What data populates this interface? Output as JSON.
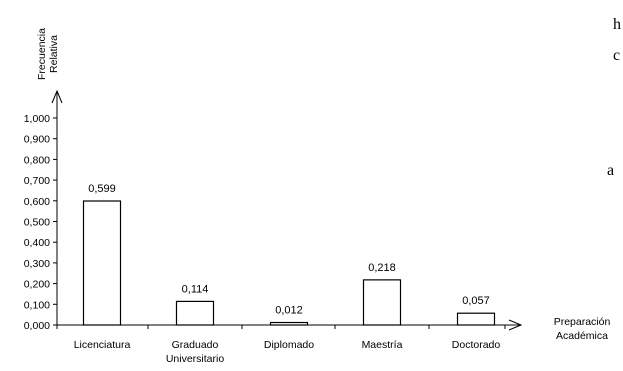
{
  "chart_data": {
    "type": "bar",
    "title": "",
    "ylabel": [
      "Frecuencia",
      "Relativa"
    ],
    "xlabel": [
      "Preparación",
      "Académica"
    ],
    "ylim": [
      0,
      1.0
    ],
    "yticks": [
      "0,000",
      "0,100",
      "0,200",
      "0,300",
      "0,400",
      "0,500",
      "0,600",
      "0,700",
      "0,800",
      "0,900",
      "1,000"
    ],
    "categories": [
      [
        "Licenciatura"
      ],
      [
        "Graduado",
        "Universitario"
      ],
      [
        "Diplomado"
      ],
      [
        "Maestría"
      ],
      [
        "Doctorado"
      ]
    ],
    "values": [
      0.599,
      0.114,
      0.012,
      0.218,
      0.057
    ],
    "value_labels": [
      "0,599",
      "0,114",
      "0,012",
      "0,218",
      "0,057"
    ],
    "grid": false,
    "legend": "none",
    "bar_fill": "#ffffff",
    "bar_stroke": "#000000"
  },
  "side_fragments": [
    "h",
    "c",
    "a"
  ]
}
